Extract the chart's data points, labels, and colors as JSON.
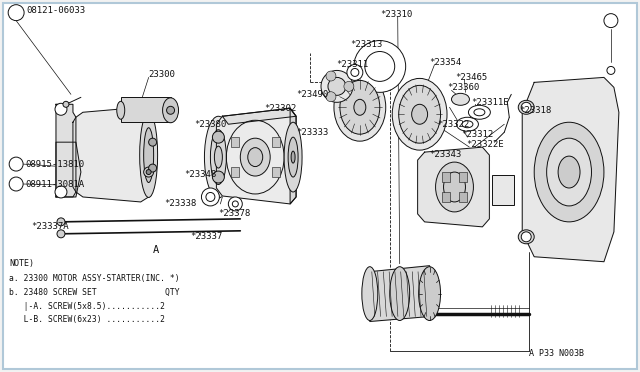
{
  "bg_color": "#f2f2f2",
  "diagram_bg": "#ffffff",
  "border_color": "#b0c8d8",
  "line_color": "#111111",
  "fig_width": 6.4,
  "fig_height": 3.72,
  "dpi": 100,
  "note_lines": [
    "NOTE)",
    "a. 23300 MOTOR ASSY-STARTER(INC. *)",
    "b. 23480 SCREW SET              QTY",
    "   |-A. SCREW(5x8.5)...........2",
    "   L-B. SCREW(6x23) ...........2"
  ],
  "ref_code": "A P33 N003B"
}
